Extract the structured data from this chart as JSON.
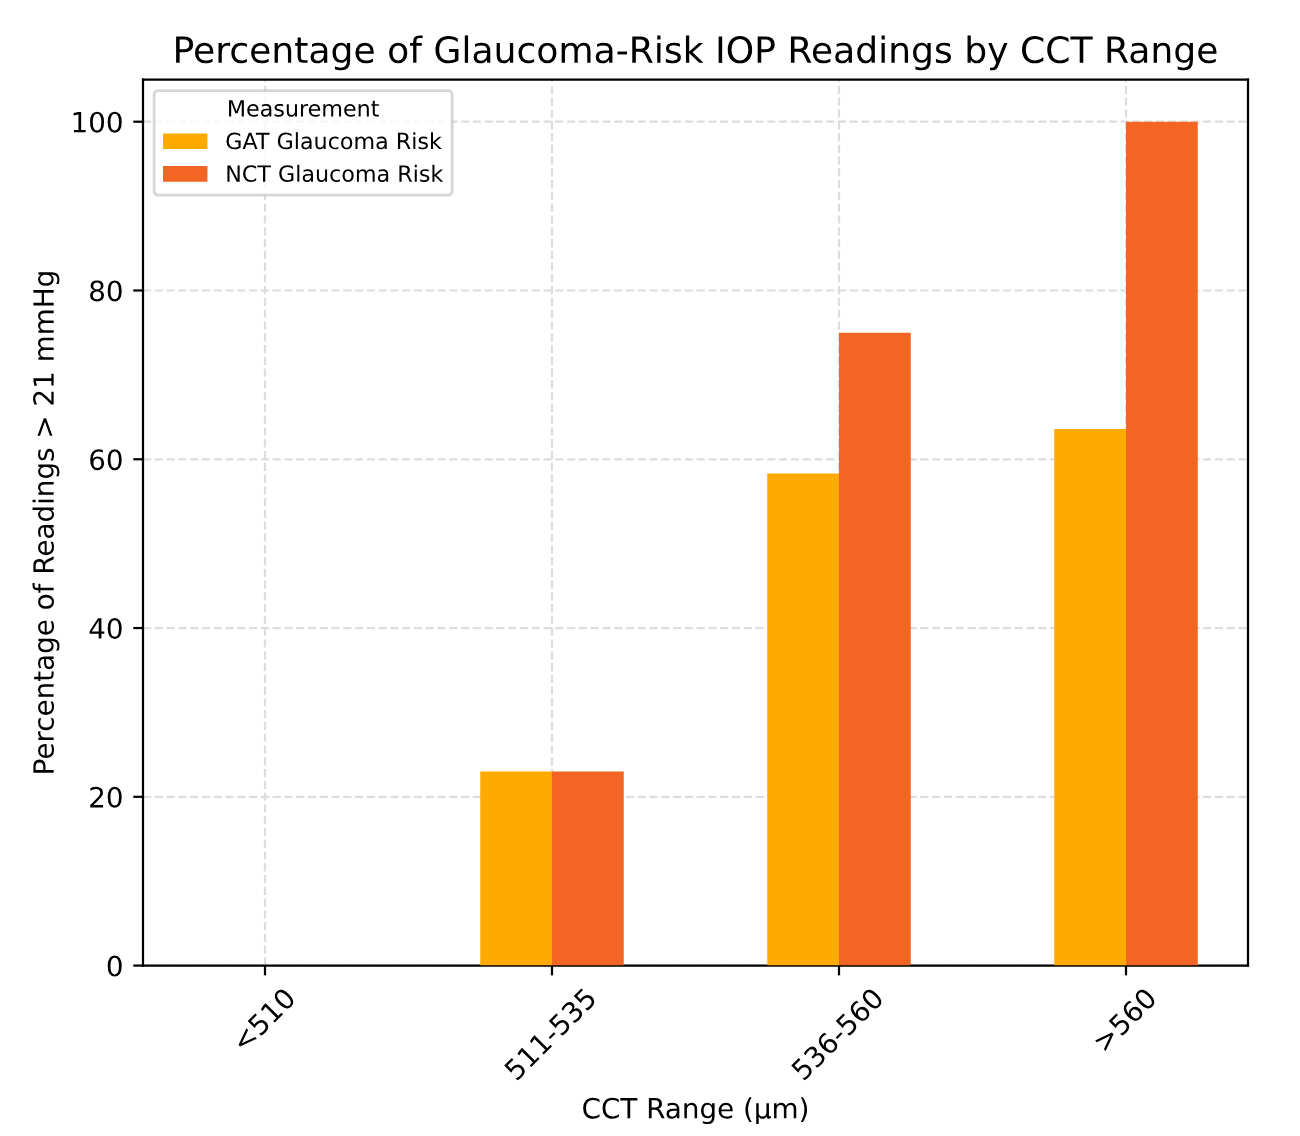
{
  "chart_data": {
    "type": "bar",
    "title": "Percentage of Glaucoma-Risk IOP Readings by CCT Range",
    "xlabel": "CCT Range (µm)",
    "ylabel": "Percentage of Readings > 21 mmHg",
    "legend_title": "Measurement",
    "categories": [
      "<510",
      "511-535",
      "536-560",
      ">560"
    ],
    "series": [
      {
        "name": "GAT Glaucoma Risk",
        "color": "#ffaa00",
        "values": [
          0,
          23,
          58.3,
          63.6
        ]
      },
      {
        "name": "NCT Glaucoma Risk",
        "color": "#f26522",
        "values": [
          0,
          23,
          75,
          100
        ]
      }
    ],
    "ylim": [
      0,
      105
    ],
    "yticks": [
      0,
      20,
      40,
      60,
      80,
      100
    ],
    "grid": true,
    "legend": "top left"
  }
}
